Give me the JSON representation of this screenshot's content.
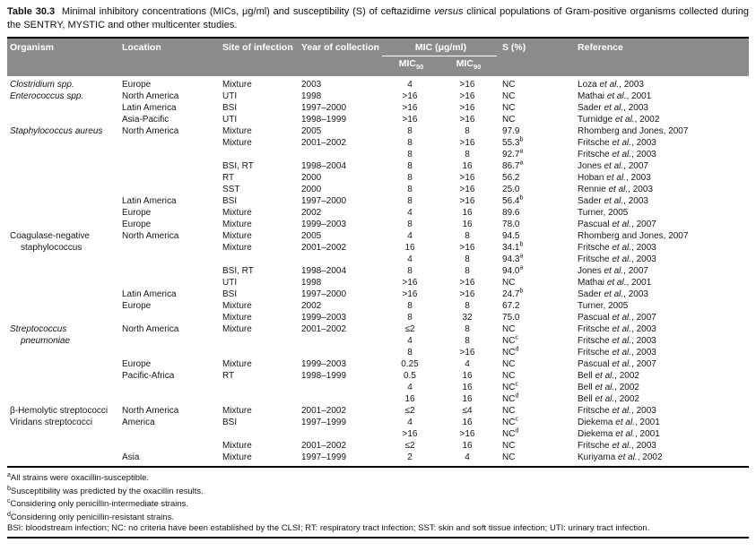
{
  "caption": {
    "label": "Table 30.3",
    "before_versus": "Minimal inhibitory concentrations (MICs, μg/ml) and susceptibility (S) of ceftazidime ",
    "versus": "versus",
    "after_versus": " clinical populations of Gram-positive organisms collected during the SENTRY, MYSTIC and other multicenter studies."
  },
  "table": {
    "headers": {
      "organism": "Organism",
      "location": "Location",
      "site": "Site of infection",
      "year": "Year of collection",
      "mic_group": "MIC (μg/ml)",
      "mic50_base": "MIC",
      "mic50_sub": "50",
      "mic90_base": "MIC",
      "mic90_sub": "90",
      "s": "S (%)",
      "reference": "Reference"
    },
    "rows": [
      {
        "org": "Clostridium spp.",
        "it": true,
        "loc": "Europe",
        "site": "Mixture",
        "year": "2003",
        "m50": "4",
        "m90": ">16",
        "s": "NC",
        "ref": "Loza et al., 2003"
      },
      {
        "org": "Enterococcus spp.",
        "it": true,
        "loc": "North America",
        "site": "UTI",
        "year": "1998",
        "m50": ">16",
        "m90": ">16",
        "s": "NC",
        "ref": "Mathai et al., 2001"
      },
      {
        "org": "",
        "loc": "Latin America",
        "site": "BSI",
        "year": "1997–2000",
        "m50": ">16",
        "m90": ">16",
        "s": "NC",
        "ref": "Sader et al., 2003"
      },
      {
        "org": "",
        "loc": "Asia-Pacific",
        "site": "UTI",
        "year": "1998–1999",
        "m50": ">16",
        "m90": ">16",
        "s": "NC",
        "ref": "Turnidge et al., 2002"
      },
      {
        "org": "Staphylococcus aureus",
        "it": true,
        "loc": "North America",
        "site": "Mixture",
        "year": "2005",
        "m50": "8",
        "m90": "8",
        "s": "97.9",
        "ref": "Rhomberg and Jones, 2007"
      },
      {
        "org": "",
        "loc": "",
        "site": "Mixture",
        "year": "2001–2002",
        "m50": "8",
        "m90": ">16",
        "s": "55.3",
        "sSup": "b",
        "ref": "Fritsche et al., 2003"
      },
      {
        "org": "",
        "loc": "",
        "site": "",
        "year": "",
        "m50": "8",
        "m90": "8",
        "s": "92.7",
        "sSup": "a",
        "ref": "Fritsche et al., 2003"
      },
      {
        "org": "",
        "loc": "",
        "site": "BSI, RT",
        "year": "1998–2004",
        "m50": "8",
        "m90": "16",
        "s": "86.7",
        "sSup": "a",
        "ref": "Jones et al., 2007"
      },
      {
        "org": "",
        "loc": "",
        "site": "RT",
        "year": "2000",
        "m50": "8",
        "m90": ">16",
        "s": "56.2",
        "ref": "Hoban et al., 2003"
      },
      {
        "org": "",
        "loc": "",
        "site": "SST",
        "year": "2000",
        "m50": "8",
        "m90": ">16",
        "s": "25.0",
        "ref": "Rennie et al., 2003"
      },
      {
        "org": "",
        "loc": "Latin America",
        "site": "BSI",
        "year": "1997–2000",
        "m50": "8",
        "m90": ">16",
        "s": "56.4",
        "sSup": "b",
        "ref": "Sader et al., 2003"
      },
      {
        "org": "",
        "loc": "Europe",
        "site": "Mixture",
        "year": "2002",
        "m50": "4",
        "m90": "16",
        "s": "89.6",
        "ref": "Turner, 2005"
      },
      {
        "org": "",
        "loc": "Europe",
        "site": "Mixture",
        "year": "1999–2003",
        "m50": "8",
        "m90": "16",
        "s": "78.0",
        "ref": "Pascual et al., 2007"
      },
      {
        "org": "Coagulase-negative staphylococcus",
        "it": false,
        "span": 2,
        "loc": "North America",
        "site": "Mixture",
        "year": "2005",
        "m50": "4",
        "m90": "8",
        "s": "94.5",
        "ref": "Rhomberg and Jones, 2007"
      },
      {
        "skip": true,
        "loc": "",
        "site": "Mixture",
        "year": "2001–2002",
        "m50": "16",
        "m90": ">16",
        "s": "34.1",
        "sSup": "b",
        "ref": "Fritsche et al., 2003"
      },
      {
        "org": "",
        "loc": "",
        "site": "",
        "year": "",
        "m50": "4",
        "m90": "8",
        "s": "94.3",
        "sSup": "a",
        "ref": "Fritsche et al., 2003"
      },
      {
        "org": "",
        "loc": "",
        "site": "BSI, RT",
        "year": "1998–2004",
        "m50": "8",
        "m90": "8",
        "s": "94.0",
        "sSup": "a",
        "ref": "Jones et al., 2007"
      },
      {
        "org": "",
        "loc": "",
        "site": "UTI",
        "year": "1998",
        "m50": ">16",
        "m90": ">16",
        "s": "NC",
        "ref": "Mathai et al., 2001"
      },
      {
        "org": "",
        "loc": "Latin America",
        "site": "BSI",
        "year": "1997–2000",
        "m50": ">16",
        "m90": ">16",
        "s": "24.7",
        "sSup": "b",
        "ref": "Sader et al., 2003"
      },
      {
        "org": "",
        "loc": "Europe",
        "site": "Mixture",
        "year": "2002",
        "m50": "8",
        "m90": "8",
        "s": "67.2",
        "ref": "Turner, 2005"
      },
      {
        "org": "",
        "loc": "",
        "site": "Mixture",
        "year": "1999–2003",
        "m50": "8",
        "m90": "32",
        "s": "75.0",
        "ref": "Pascual et al., 2007"
      },
      {
        "org": "Streptococcus pneumoniae",
        "it": true,
        "span": 2,
        "loc": "North America",
        "site": "Mixture",
        "year": "2001–2002",
        "m50": "≤2",
        "m90": "8",
        "s": "NC",
        "ref": "Fritsche et al., 2003"
      },
      {
        "skip": true,
        "loc": "",
        "site": "",
        "year": "",
        "m50": "4",
        "m90": "8",
        "s": "NC",
        "sSup": "c",
        "ref": "Fritsche et al., 2003"
      },
      {
        "org": "",
        "loc": "",
        "site": "",
        "year": "",
        "m50": "8",
        "m90": ">16",
        "s": "NC",
        "sSup": "d",
        "ref": "Fritsche et al., 2003"
      },
      {
        "org": "",
        "loc": "Europe",
        "site": "Mixture",
        "year": "1999–2003",
        "m50": "0.25",
        "m90": "4",
        "s": "NC",
        "ref": "Pascual et al., 2007"
      },
      {
        "org": "",
        "loc": "Pacific-Africa",
        "site": "RT",
        "year": "1998–1999",
        "m50": "0.5",
        "m90": "16",
        "s": "NC",
        "ref": "Bell et al., 2002"
      },
      {
        "org": "",
        "loc": "",
        "site": "",
        "year": "",
        "m50": "4",
        "m90": "16",
        "s": "NC",
        "sSup": "c",
        "ref": "Bell et al., 2002"
      },
      {
        "org": "",
        "loc": "",
        "site": "",
        "year": "",
        "m50": "16",
        "m90": "16",
        "s": "NC",
        "sSup": "d",
        "ref": "Bell et al., 2002"
      },
      {
        "org": "β-Hemolytic streptococci",
        "it": false,
        "loc": "North America",
        "site": "Mixture",
        "year": "2001–2002",
        "m50": "≤2",
        "m90": "≤4",
        "s": "NC",
        "ref": "Fritsche et al., 2003"
      },
      {
        "org": "Viridans streptococci",
        "it": false,
        "loc": "America",
        "site": "BSI",
        "year": "1997–1999",
        "m50": "4",
        "m90": "16",
        "s": "NC",
        "sSup": "c",
        "ref": "Diekema et al., 2001"
      },
      {
        "org": "",
        "loc": "",
        "site": "",
        "year": "",
        "m50": ">16",
        "m90": ">16",
        "s": "NC",
        "sSup": "d",
        "ref": "Diekema et al., 2001"
      },
      {
        "org": "",
        "loc": "",
        "site": "Mixture",
        "year": "2001–2002",
        "m50": "≤2",
        "m90": "16",
        "s": "NC",
        "ref": "Fritsche et al., 2003"
      },
      {
        "org": "",
        "loc": "Asia",
        "site": "Mixture",
        "year": "1997–1999",
        "m50": "2",
        "m90": "4",
        "s": "NC",
        "ref": "Kuriyama et al., 2002"
      }
    ]
  },
  "footnotes": {
    "items": [
      {
        "sup": "a",
        "text": "All strains were oxacillin-susceptible."
      },
      {
        "sup": "b",
        "text": "Susceptibility was predicted by the oxacillin results."
      },
      {
        "sup": "c",
        "text": "Considering only penicillin-intermediate strains."
      },
      {
        "sup": "d",
        "text": "Considering only penicillin-resistant strains."
      }
    ],
    "abbreviations": "BSI: bloodstream infection; NC: no criteria have been established by the CLSI; RT: respiratory tract infection; SST: skin and soft tissue infection; UTI: urinary tract infection."
  },
  "colors": {
    "header_bg": "#8c8c8c",
    "header_text": "#ffffff",
    "rule": "#000000"
  }
}
